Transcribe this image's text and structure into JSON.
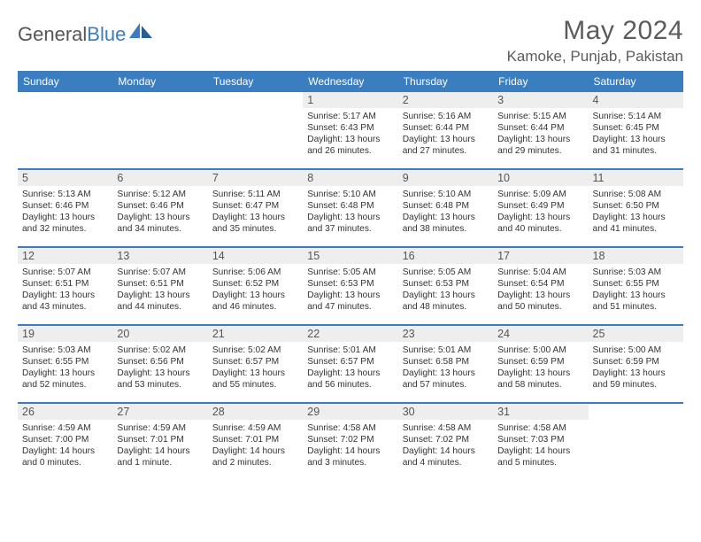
{
  "logo": {
    "textGray": "General",
    "textBlue": "Blue"
  },
  "title": "May 2024",
  "location": "Kamoke, Punjab, Pakistan",
  "colors": {
    "headerBar": "#3a7ebf",
    "dayBand": "#eeeeee",
    "rowBorder": "#3a7ebf",
    "textDark": "#333333",
    "textGray": "#5c5c5c",
    "background": "#ffffff"
  },
  "typography": {
    "pageTitleSize": 30,
    "locationSize": 17,
    "dowSize": 12,
    "bodySize": 10.2,
    "family": "Arial"
  },
  "dow": [
    "Sunday",
    "Monday",
    "Tuesday",
    "Wednesday",
    "Thursday",
    "Friday",
    "Saturday"
  ],
  "weeks": [
    [
      null,
      null,
      null,
      {
        "n": "1",
        "sr": "Sunrise: 5:17 AM",
        "ss": "Sunset: 6:43 PM",
        "dl": "Daylight: 13 hours and 26 minutes."
      },
      {
        "n": "2",
        "sr": "Sunrise: 5:16 AM",
        "ss": "Sunset: 6:44 PM",
        "dl": "Daylight: 13 hours and 27 minutes."
      },
      {
        "n": "3",
        "sr": "Sunrise: 5:15 AM",
        "ss": "Sunset: 6:44 PM",
        "dl": "Daylight: 13 hours and 29 minutes."
      },
      {
        "n": "4",
        "sr": "Sunrise: 5:14 AM",
        "ss": "Sunset: 6:45 PM",
        "dl": "Daylight: 13 hours and 31 minutes."
      }
    ],
    [
      {
        "n": "5",
        "sr": "Sunrise: 5:13 AM",
        "ss": "Sunset: 6:46 PM",
        "dl": "Daylight: 13 hours and 32 minutes."
      },
      {
        "n": "6",
        "sr": "Sunrise: 5:12 AM",
        "ss": "Sunset: 6:46 PM",
        "dl": "Daylight: 13 hours and 34 minutes."
      },
      {
        "n": "7",
        "sr": "Sunrise: 5:11 AM",
        "ss": "Sunset: 6:47 PM",
        "dl": "Daylight: 13 hours and 35 minutes."
      },
      {
        "n": "8",
        "sr": "Sunrise: 5:10 AM",
        "ss": "Sunset: 6:48 PM",
        "dl": "Daylight: 13 hours and 37 minutes."
      },
      {
        "n": "9",
        "sr": "Sunrise: 5:10 AM",
        "ss": "Sunset: 6:48 PM",
        "dl": "Daylight: 13 hours and 38 minutes."
      },
      {
        "n": "10",
        "sr": "Sunrise: 5:09 AM",
        "ss": "Sunset: 6:49 PM",
        "dl": "Daylight: 13 hours and 40 minutes."
      },
      {
        "n": "11",
        "sr": "Sunrise: 5:08 AM",
        "ss": "Sunset: 6:50 PM",
        "dl": "Daylight: 13 hours and 41 minutes."
      }
    ],
    [
      {
        "n": "12",
        "sr": "Sunrise: 5:07 AM",
        "ss": "Sunset: 6:51 PM",
        "dl": "Daylight: 13 hours and 43 minutes."
      },
      {
        "n": "13",
        "sr": "Sunrise: 5:07 AM",
        "ss": "Sunset: 6:51 PM",
        "dl": "Daylight: 13 hours and 44 minutes."
      },
      {
        "n": "14",
        "sr": "Sunrise: 5:06 AM",
        "ss": "Sunset: 6:52 PM",
        "dl": "Daylight: 13 hours and 46 minutes."
      },
      {
        "n": "15",
        "sr": "Sunrise: 5:05 AM",
        "ss": "Sunset: 6:53 PM",
        "dl": "Daylight: 13 hours and 47 minutes."
      },
      {
        "n": "16",
        "sr": "Sunrise: 5:05 AM",
        "ss": "Sunset: 6:53 PM",
        "dl": "Daylight: 13 hours and 48 minutes."
      },
      {
        "n": "17",
        "sr": "Sunrise: 5:04 AM",
        "ss": "Sunset: 6:54 PM",
        "dl": "Daylight: 13 hours and 50 minutes."
      },
      {
        "n": "18",
        "sr": "Sunrise: 5:03 AM",
        "ss": "Sunset: 6:55 PM",
        "dl": "Daylight: 13 hours and 51 minutes."
      }
    ],
    [
      {
        "n": "19",
        "sr": "Sunrise: 5:03 AM",
        "ss": "Sunset: 6:55 PM",
        "dl": "Daylight: 13 hours and 52 minutes."
      },
      {
        "n": "20",
        "sr": "Sunrise: 5:02 AM",
        "ss": "Sunset: 6:56 PM",
        "dl": "Daylight: 13 hours and 53 minutes."
      },
      {
        "n": "21",
        "sr": "Sunrise: 5:02 AM",
        "ss": "Sunset: 6:57 PM",
        "dl": "Daylight: 13 hours and 55 minutes."
      },
      {
        "n": "22",
        "sr": "Sunrise: 5:01 AM",
        "ss": "Sunset: 6:57 PM",
        "dl": "Daylight: 13 hours and 56 minutes."
      },
      {
        "n": "23",
        "sr": "Sunrise: 5:01 AM",
        "ss": "Sunset: 6:58 PM",
        "dl": "Daylight: 13 hours and 57 minutes."
      },
      {
        "n": "24",
        "sr": "Sunrise: 5:00 AM",
        "ss": "Sunset: 6:59 PM",
        "dl": "Daylight: 13 hours and 58 minutes."
      },
      {
        "n": "25",
        "sr": "Sunrise: 5:00 AM",
        "ss": "Sunset: 6:59 PM",
        "dl": "Daylight: 13 hours and 59 minutes."
      }
    ],
    [
      {
        "n": "26",
        "sr": "Sunrise: 4:59 AM",
        "ss": "Sunset: 7:00 PM",
        "dl": "Daylight: 14 hours and 0 minutes."
      },
      {
        "n": "27",
        "sr": "Sunrise: 4:59 AM",
        "ss": "Sunset: 7:01 PM",
        "dl": "Daylight: 14 hours and 1 minute."
      },
      {
        "n": "28",
        "sr": "Sunrise: 4:59 AM",
        "ss": "Sunset: 7:01 PM",
        "dl": "Daylight: 14 hours and 2 minutes."
      },
      {
        "n": "29",
        "sr": "Sunrise: 4:58 AM",
        "ss": "Sunset: 7:02 PM",
        "dl": "Daylight: 14 hours and 3 minutes."
      },
      {
        "n": "30",
        "sr": "Sunrise: 4:58 AM",
        "ss": "Sunset: 7:02 PM",
        "dl": "Daylight: 14 hours and 4 minutes."
      },
      {
        "n": "31",
        "sr": "Sunrise: 4:58 AM",
        "ss": "Sunset: 7:03 PM",
        "dl": "Daylight: 14 hours and 5 minutes."
      },
      null
    ]
  ]
}
